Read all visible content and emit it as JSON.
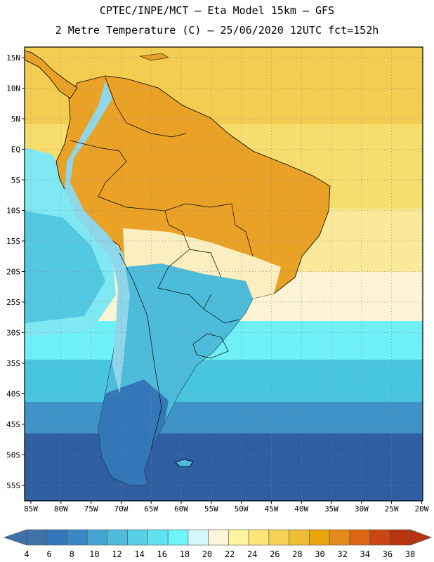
{
  "title": {
    "line1": "CPTEC/INPE/MCT –  Eta Model 15km – GFS",
    "line2": "2 Metre Temperature (C) – 25/06/2020 12UTC fct=152h"
  },
  "map": {
    "lat_labels": [
      "15N",
      "10N",
      "5N",
      "EQ",
      "5S",
      "10S",
      "15S",
      "20S",
      "25S",
      "30S",
      "35S",
      "40S",
      "45S",
      "50S",
      "55S"
    ],
    "lon_labels": [
      "85W",
      "80W",
      "75W",
      "70W",
      "65W",
      "60W",
      "55W",
      "50W",
      "45W",
      "40W",
      "35W",
      "30W",
      "25W",
      "20W"
    ],
    "lon_range": [
      -85,
      -20
    ],
    "lat_range": [
      -58,
      16
    ]
  },
  "colorbar": {
    "ticks": [
      "4",
      "6",
      "8",
      "10",
      "12",
      "14",
      "16",
      "18",
      "20",
      "22",
      "24",
      "26",
      "28",
      "30",
      "32",
      "34",
      "36",
      "38"
    ],
    "colors": [
      "#3f73a8",
      "#3477b8",
      "#3b86c4",
      "#43a5cf",
      "#4dbcdb",
      "#57cfe4",
      "#5fe3ee",
      "#6ef5f8",
      "#d4f7fa",
      "#fff5dc",
      "#fff59e",
      "#ffe47a",
      "#f7d155",
      "#efbd32",
      "#eba40e",
      "#e48a1a",
      "#dd6614",
      "#ca4612",
      "#b8340f"
    ]
  },
  "legend_colors": {
    "ocean_cold": "#2f5ea3",
    "ocean_cool": "#3f93c8",
    "ocean_mild": "#48c5df",
    "ocean_warm": "#f0c94a",
    "land_hot": "#e9a126",
    "border": "#000000"
  }
}
